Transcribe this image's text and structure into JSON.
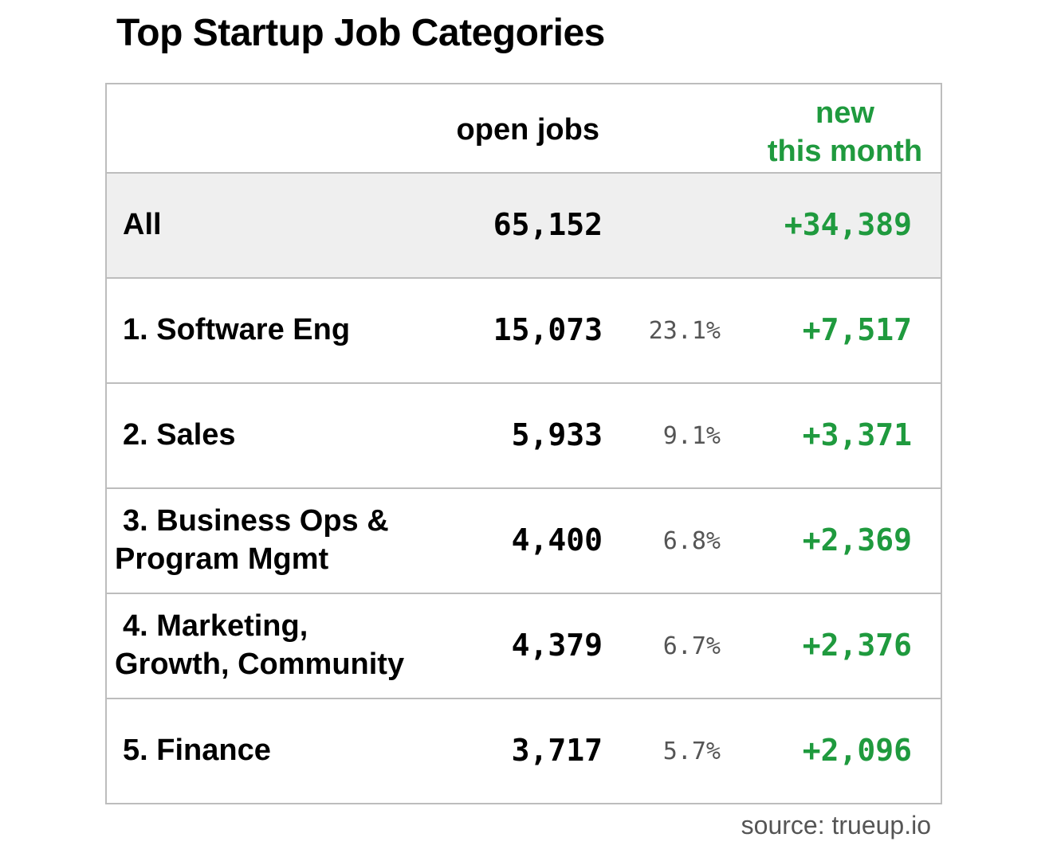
{
  "chart_data": {
    "type": "table",
    "title": "Top Startup Job Categories",
    "columns": [
      "",
      "open jobs",
      "",
      "new this month"
    ],
    "header": {
      "open_jobs": "open jobs",
      "new_line1": "new",
      "new_line2": "this month"
    },
    "total": {
      "label": "All",
      "open_jobs": "65,152",
      "new_this_month": "+34,389"
    },
    "rows": [
      {
        "label_line1": "1. Software Eng",
        "label_line2": "",
        "open_jobs": "15,073",
        "share": "23.1%",
        "new_this_month": "+7,517"
      },
      {
        "label_line1": "2. Sales",
        "label_line2": "",
        "open_jobs": "5,933",
        "share": "9.1%",
        "new_this_month": "+3,371"
      },
      {
        "label_line1": "3. Business Ops &",
        "label_line2": "Program Mgmt",
        "open_jobs": "4,400",
        "share": "6.8%",
        "new_this_month": "+2,369"
      },
      {
        "label_line1": "4. Marketing,",
        "label_line2": "Growth, Community",
        "open_jobs": "4,379",
        "share": "6.7%",
        "new_this_month": "+2,376"
      },
      {
        "label_line1": "5. Finance",
        "label_line2": "",
        "open_jobs": "3,717",
        "share": "5.7%",
        "new_this_month": "+2,096"
      }
    ],
    "source": "source: trueup.io"
  },
  "colors": {
    "accent_green": "#1f9a3e",
    "border": "#bdbdbd",
    "total_row_bg": "#efefef",
    "muted_text": "#555555"
  }
}
